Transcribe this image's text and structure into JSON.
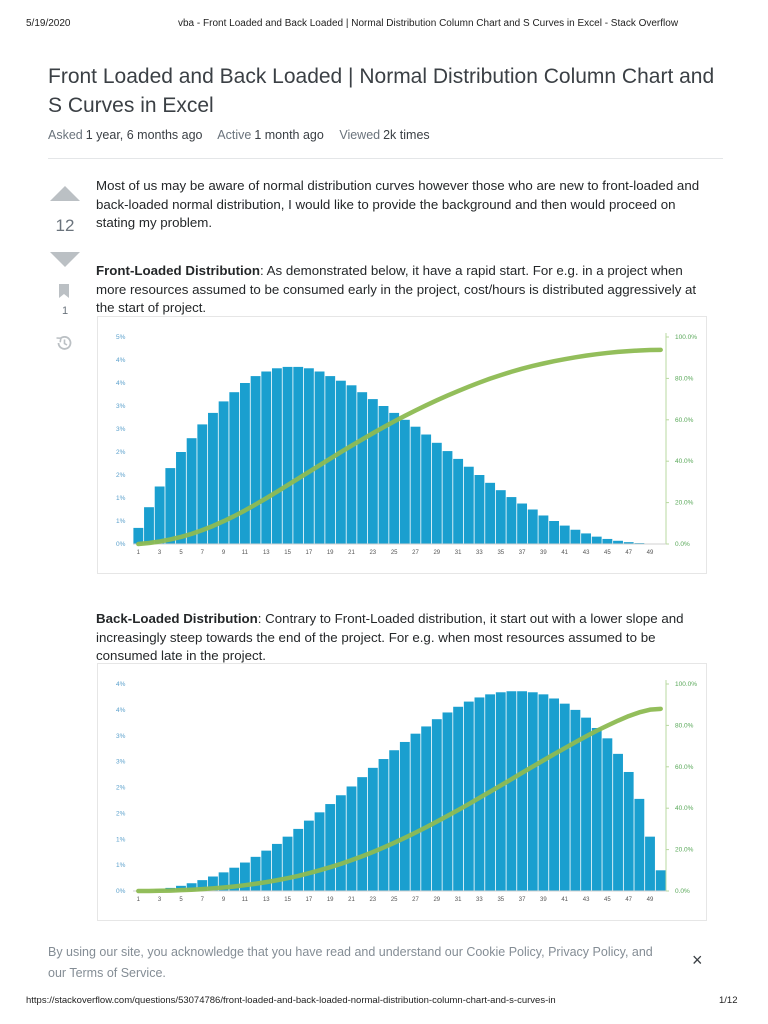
{
  "print_header": {
    "date": "5/19/2020",
    "title": "vba - Front Loaded and Back Loaded | Normal Distribution Column Chart and S Curves in Excel - Stack Overflow"
  },
  "question": {
    "title": "Front Loaded and Back Loaded | Normal Distribution Column Chart and S Curves in Excel",
    "asked_label": "Asked",
    "asked_value": "1 year, 6 months ago",
    "active_label": "Active",
    "active_value": "1 month ago",
    "viewed_label": "Viewed",
    "viewed_value": "2k times"
  },
  "votes": {
    "score": "12",
    "bookmarks": "1"
  },
  "body": {
    "intro": "Most of us may be aware of normal distribution curves however those who are new to front-loaded and back-loaded normal distribution, I would like to provide the background and then would proceed on stating my problem.",
    "front_heading": "Front-Loaded Distribution",
    "front_text": ": As demonstrated below, it have a rapid start. For e.g. in a project when more resources assumed to be consumed early in the project, cost/hours is distributed aggressively at the start of project.",
    "back_heading": "Back-Loaded Distribution",
    "back_text": ": Contrary to Front-Loaded distribution, it start out with a lower slope and increasingly steep towards the end of the project. For e.g. when most resources assumed to be consumed late in the project."
  },
  "cookie_banner": {
    "text": "By using our site, you acknowledge that you have read and understand our Cookie Policy, Privacy Policy, and our Terms of Service.",
    "close": "×"
  },
  "print_footer": {
    "url": "https://stackoverflow.com/questions/53074786/front-loaded-and-back-loaded-normal-distribution-column-chart-and-s-curves-in",
    "page": "1/12"
  },
  "colors": {
    "bar": "#1a9fcf",
    "curve": "#8dbb52",
    "left_tick": "#5aa0cc",
    "right_tick": "#58a858"
  },
  "chart_data": [
    {
      "type": "bar",
      "name": "front-loaded",
      "x": [
        1,
        2,
        3,
        4,
        5,
        6,
        7,
        8,
        9,
        10,
        11,
        12,
        13,
        14,
        15,
        16,
        17,
        18,
        19,
        20,
        21,
        22,
        23,
        24,
        25,
        26,
        27,
        28,
        29,
        30,
        31,
        32,
        33,
        34,
        35,
        36,
        37,
        38,
        39,
        40,
        41,
        42,
        43,
        44,
        45,
        46,
        47,
        48,
        49,
        50
      ],
      "x_tick_labels": [
        "1",
        "3",
        "5",
        "7",
        "9",
        "11",
        "13",
        "15",
        "17",
        "19",
        "21",
        "23",
        "25",
        "27",
        "29",
        "31",
        "33",
        "35",
        "37",
        "39",
        "41",
        "43",
        "45",
        "47",
        "49"
      ],
      "y_left_tick_labels": [
        "0%",
        "1%",
        "1%",
        "2%",
        "2%",
        "3%",
        "3%",
        "4%",
        "4%",
        "5%"
      ],
      "y_right_tick_labels": [
        "0.0%",
        "20.0%",
        "40.0%",
        "60.0%",
        "80.0%",
        "100.0%"
      ],
      "ylim_left": [
        0,
        4.5
      ],
      "ylim_right": [
        0,
        100
      ],
      "series": [
        {
          "kind": "column",
          "values": [
            0.35,
            0.8,
            1.25,
            1.65,
            2.0,
            2.3,
            2.6,
            2.85,
            3.1,
            3.3,
            3.5,
            3.65,
            3.75,
            3.82,
            3.85,
            3.85,
            3.82,
            3.75,
            3.65,
            3.55,
            3.45,
            3.3,
            3.15,
            3.0,
            2.85,
            2.7,
            2.55,
            2.38,
            2.2,
            2.02,
            1.85,
            1.68,
            1.5,
            1.33,
            1.17,
            1.02,
            0.88,
            0.75,
            0.62,
            0.5,
            0.4,
            0.31,
            0.23,
            0.16,
            0.11,
            0.07,
            0.04,
            0.02,
            0.01,
            0.0
          ]
        },
        {
          "kind": "s-curve",
          "values": [
            0.0,
            0.5,
            1.2,
            2.2,
            3.4,
            4.9,
            6.7,
            8.7,
            11.0,
            13.5,
            16.2,
            19.1,
            22.1,
            25.2,
            28.4,
            31.6,
            34.8,
            38.0,
            41.2,
            44.4,
            47.5,
            50.5,
            53.5,
            56.4,
            59.2,
            61.9,
            64.5,
            67.0,
            69.4,
            71.7,
            73.9,
            76.0,
            78.0,
            79.9,
            81.6,
            83.2,
            84.7,
            86.0,
            87.2,
            88.3,
            89.3,
            90.2,
            91.0,
            91.7,
            92.3,
            92.8,
            93.2,
            93.5,
            93.7,
            93.8
          ]
        }
      ]
    },
    {
      "type": "bar",
      "name": "back-loaded",
      "x": [
        1,
        2,
        3,
        4,
        5,
        6,
        7,
        8,
        9,
        10,
        11,
        12,
        13,
        14,
        15,
        16,
        17,
        18,
        19,
        20,
        21,
        22,
        23,
        24,
        25,
        26,
        27,
        28,
        29,
        30,
        31,
        32,
        33,
        34,
        35,
        36,
        37,
        38,
        39,
        40,
        41,
        42,
        43,
        44,
        45,
        46,
        47,
        48,
        49,
        50
      ],
      "x_tick_labels": [
        "1",
        "3",
        "5",
        "7",
        "9",
        "11",
        "13",
        "15",
        "17",
        "19",
        "21",
        "23",
        "25",
        "27",
        "29",
        "31",
        "33",
        "35",
        "37",
        "39",
        "41",
        "43",
        "45",
        "47",
        "49"
      ],
      "y_left_tick_labels": [
        "0%",
        "1%",
        "1%",
        "2%",
        "2%",
        "3%",
        "3%",
        "4%",
        "4%"
      ],
      "y_right_tick_labels": [
        "0.0%",
        "20.0%",
        "40.0%",
        "60.0%",
        "80.0%",
        "100.0%"
      ],
      "ylim_left": [
        0,
        4.0
      ],
      "ylim_right": [
        0,
        100
      ],
      "series": [
        {
          "kind": "column",
          "values": [
            0.0,
            0.01,
            0.03,
            0.06,
            0.1,
            0.15,
            0.21,
            0.28,
            0.36,
            0.45,
            0.55,
            0.66,
            0.78,
            0.91,
            1.05,
            1.2,
            1.36,
            1.52,
            1.68,
            1.85,
            2.02,
            2.2,
            2.38,
            2.55,
            2.72,
            2.88,
            3.04,
            3.18,
            3.32,
            3.45,
            3.56,
            3.66,
            3.74,
            3.8,
            3.84,
            3.86,
            3.86,
            3.84,
            3.8,
            3.72,
            3.62,
            3.5,
            3.35,
            3.15,
            2.95,
            2.65,
            2.3,
            1.78,
            1.05,
            0.4
          ]
        },
        {
          "kind": "s-curve",
          "values": [
            0.0,
            0.0,
            0.1,
            0.2,
            0.4,
            0.6,
            0.9,
            1.3,
            1.7,
            2.2,
            2.8,
            3.5,
            4.3,
            5.2,
            6.2,
            7.3,
            8.6,
            10.0,
            11.5,
            13.1,
            14.9,
            16.8,
            18.8,
            21.0,
            23.3,
            25.7,
            28.2,
            30.8,
            33.5,
            36.3,
            39.1,
            42.0,
            45.0,
            48.0,
            51.0,
            54.0,
            57.1,
            60.1,
            63.1,
            66.1,
            69.0,
            71.9,
            74.7,
            77.4,
            79.9,
            82.3,
            84.5,
            86.3,
            87.6,
            88.0
          ]
        }
      ]
    }
  ]
}
